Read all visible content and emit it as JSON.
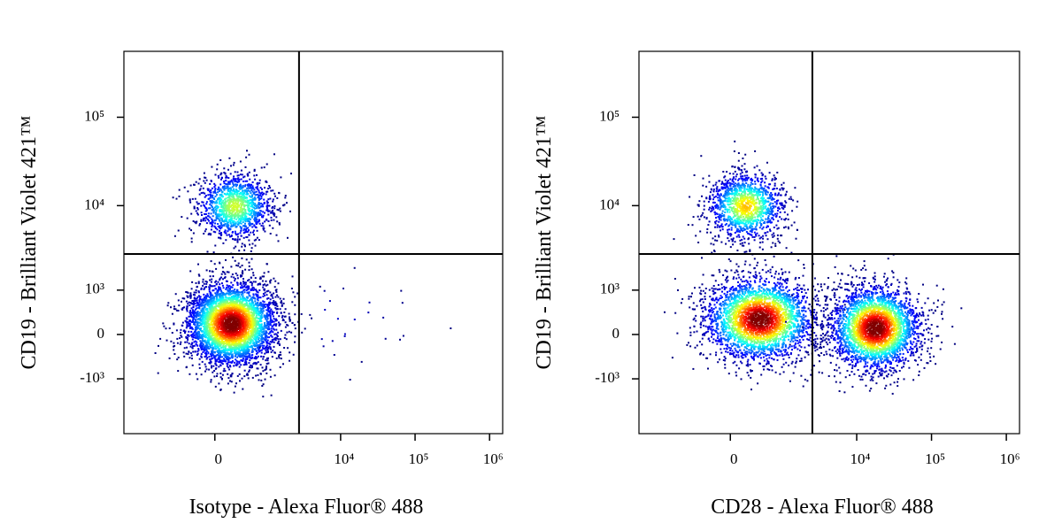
{
  "chart_data": [
    {
      "type": "scatter",
      "x_label": "Isotype - Alexa Fluor® 488",
      "y_label": "CD19 - Brilliant Violet 421™",
      "xlim": [
        -3400,
        1500000
      ],
      "ylim": [
        -4600,
        556000
      ],
      "xticks": [
        0,
        {
          "value": 10000,
          "label": "10⁴"
        },
        {
          "value": 100000,
          "label": "10⁵"
        },
        {
          "value": 1000000,
          "label": "10⁶"
        }
      ],
      "yticks": [
        {
          "value": -1000,
          "label": "-10³"
        },
        0,
        {
          "value": 1000,
          "label": "10³"
        },
        {
          "value": 10000,
          "label": "10⁴"
        },
        {
          "value": 100000,
          "label": "10⁵"
        }
      ],
      "gates": {
        "x": 2750,
        "y": 2800
      },
      "populations": [
        {
          "x": 260,
          "y": 10000,
          "x_sd": 0.6,
          "y_sd": 0.45,
          "count": 1300
        },
        {
          "x": 210,
          "y": 210,
          "x_sd": 0.7,
          "y_sd": 0.55,
          "count": 4200
        },
        {
          "x": 9000,
          "y": 300,
          "x_sd": 1.2,
          "y_sd": 0.6,
          "count": 25
        }
      ]
    },
    {
      "type": "scatter",
      "x_label": "CD28 - Alexa Fluor® 488",
      "y_label": "CD19 - Brilliant Violet 421™",
      "xlim": [
        -3400,
        1500000
      ],
      "ylim": [
        -4600,
        556000
      ],
      "xticks": [
        0,
        {
          "value": 10000,
          "label": "10⁴"
        },
        {
          "value": 100000,
          "label": "10⁵"
        },
        {
          "value": 1000000,
          "label": "10⁶"
        }
      ],
      "yticks": [
        {
          "value": -1000,
          "label": "-10³"
        },
        0,
        {
          "value": 1000,
          "label": "10³"
        },
        {
          "value": 10000,
          "label": "10⁴"
        },
        {
          "value": 100000,
          "label": "10⁵"
        }
      ],
      "gates": {
        "x": 2540,
        "y": 2800
      },
      "populations": [
        {
          "x": 195,
          "y": 10000,
          "x_sd": 0.6,
          "y_sd": 0.45,
          "count": 1300
        },
        {
          "x": 410,
          "y": 300,
          "x_sd": 0.85,
          "y_sd": 0.55,
          "count": 3000
        },
        {
          "x": 17400,
          "y": 130,
          "x_sd": 0.7,
          "y_sd": 0.55,
          "count": 3000
        }
      ]
    }
  ]
}
